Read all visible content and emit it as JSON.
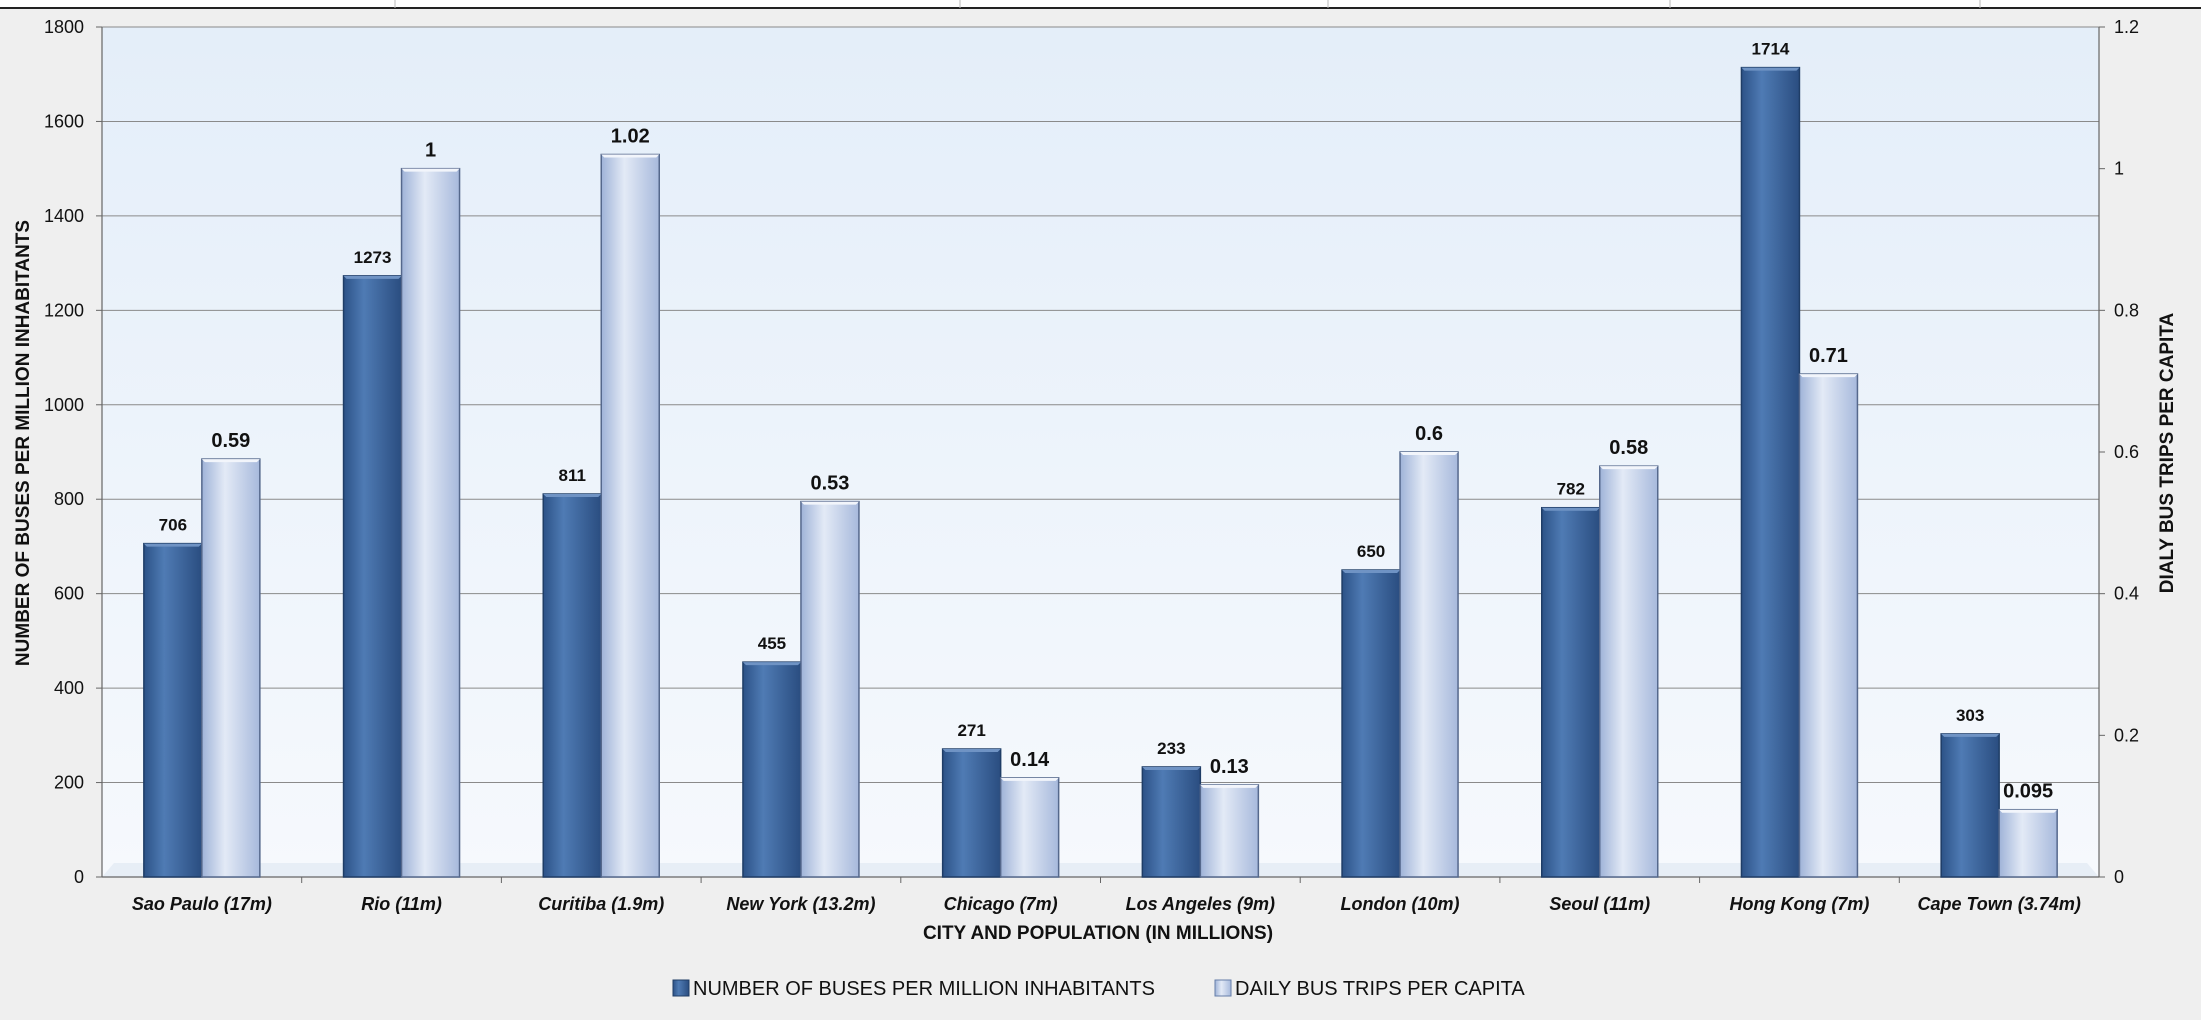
{
  "chart_data": {
    "type": "bar",
    "categories": [
      "Sao Paulo (17m)",
      "Rio (11m)",
      "Curitiba (1.9m)",
      "New York (13.2m)",
      "Chicago (7m)",
      "Los Angeles (9m)",
      "London (10m)",
      "Seoul (11m)",
      "Hong Kong (7m)",
      "Cape Town (3.74m)"
    ],
    "series": [
      {
        "name": "NUMBER OF BUSES PER MILLION INHABITANTS",
        "axis": "left",
        "color": "#3e6aa3",
        "values": [
          706,
          1273,
          811,
          455,
          271,
          233,
          650,
          782,
          1714,
          303
        ],
        "labels": [
          "706",
          "1273",
          "811",
          "455",
          "271",
          "233",
          "650",
          "782",
          "1714",
          "303"
        ]
      },
      {
        "name": "DAILY BUS TRIPS PER CAPITA",
        "axis": "right",
        "color": "#bccbe6",
        "values": [
          0.59,
          1,
          1.02,
          0.53,
          0.14,
          0.13,
          0.6,
          0.58,
          0.71,
          0.095
        ],
        "labels": [
          "0.59",
          "1",
          "1.02",
          "0.53",
          "0.14",
          "0.13",
          "0.6",
          "0.58",
          "0.71",
          "0.095"
        ]
      }
    ],
    "xlabel": "CITY AND POPULATION (IN MILLIONS)",
    "ylabel": "NUMBER OF BUSES PER MILLION  INHABITANTS",
    "y2label": "DIALY BUS TRIPS PER CAPITA",
    "ylim": [
      0,
      1800
    ],
    "y2lim": [
      0,
      1.2
    ],
    "yticks": [
      "0",
      "200",
      "400",
      "600",
      "800",
      "1000",
      "1200",
      "1400",
      "1600",
      "1800"
    ],
    "y2ticks": [
      "0",
      "0.2",
      "0.4",
      "0.6",
      "0.8",
      "1",
      "1.2"
    ],
    "grid": true,
    "legend_position": "bottom"
  }
}
